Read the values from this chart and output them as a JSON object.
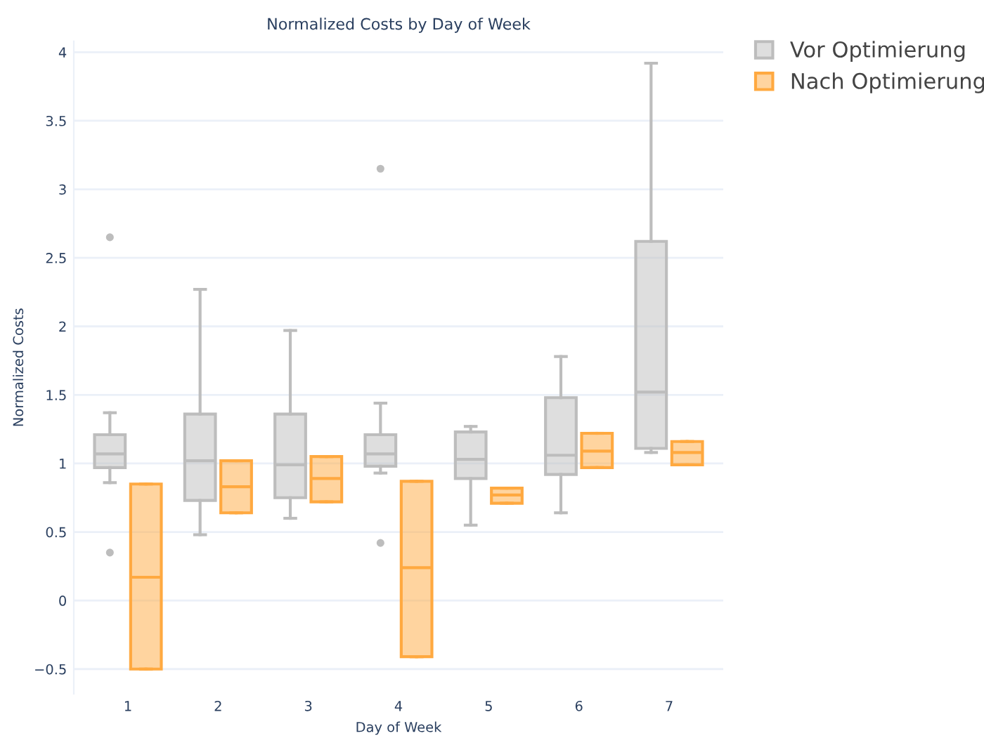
{
  "chart_data": {
    "type": "box",
    "title": "Normalized Costs by Day of Week",
    "xlabel": "Day of Week",
    "ylabel": "Normalized Costs",
    "categories": [
      "1",
      "2",
      "3",
      "4",
      "5",
      "6",
      "7"
    ],
    "series": [
      {
        "name": "Vor Optimierung",
        "color": "#bdbdbd",
        "boxes": [
          {
            "low": 0.86,
            "q1": 0.97,
            "median": 1.07,
            "q3": 1.21,
            "high": 1.37,
            "outliers": [
              2.65,
              0.35
            ]
          },
          {
            "low": 0.48,
            "q1": 0.73,
            "median": 1.02,
            "q3": 1.36,
            "high": 2.27
          },
          {
            "low": 0.6,
            "q1": 0.75,
            "median": 0.99,
            "q3": 1.36,
            "high": 1.97
          },
          {
            "low": 0.93,
            "q1": 0.98,
            "median": 1.07,
            "q3": 1.21,
            "high": 1.44,
            "outliers": [
              3.15,
              0.42
            ]
          },
          {
            "low": 0.55,
            "q1": 0.89,
            "median": 1.03,
            "q3": 1.23,
            "high": 1.27
          },
          {
            "low": 0.64,
            "q1": 0.92,
            "median": 1.06,
            "q3": 1.48,
            "high": 1.78
          },
          {
            "low": 1.08,
            "q1": 1.11,
            "median": 1.52,
            "q3": 2.62,
            "high": 3.92
          }
        ]
      },
      {
        "name": "Nach Optimierung",
        "color": "#ffa940",
        "boxes": [
          {
            "low": -0.5,
            "q1": -0.5,
            "median": 0.17,
            "q3": 0.85,
            "high": 0.85
          },
          {
            "low": 0.64,
            "q1": 0.64,
            "median": 0.83,
            "q3": 1.02,
            "high": 1.02
          },
          {
            "low": 0.72,
            "q1": 0.72,
            "median": 0.89,
            "q3": 1.05,
            "high": 1.05
          },
          {
            "low": -0.41,
            "q1": -0.41,
            "median": 0.24,
            "q3": 0.87,
            "high": 0.87
          },
          {
            "low": 0.71,
            "q1": 0.71,
            "median": 0.77,
            "q3": 0.82,
            "high": 0.82
          },
          {
            "low": 0.97,
            "q1": 0.97,
            "median": 1.09,
            "q3": 1.22,
            "high": 1.22
          },
          {
            "low": 0.99,
            "q1": 0.99,
            "median": 1.08,
            "q3": 1.16,
            "high": 1.16
          }
        ]
      }
    ],
    "ylim": [
      -0.68,
      4.08
    ],
    "yticks": [
      {
        "value": -0.5,
        "label": "−0.5"
      },
      0,
      0.5,
      1,
      1.5,
      2,
      2.5,
      3,
      3.5,
      4
    ],
    "grid": "y",
    "legend": "top right"
  }
}
